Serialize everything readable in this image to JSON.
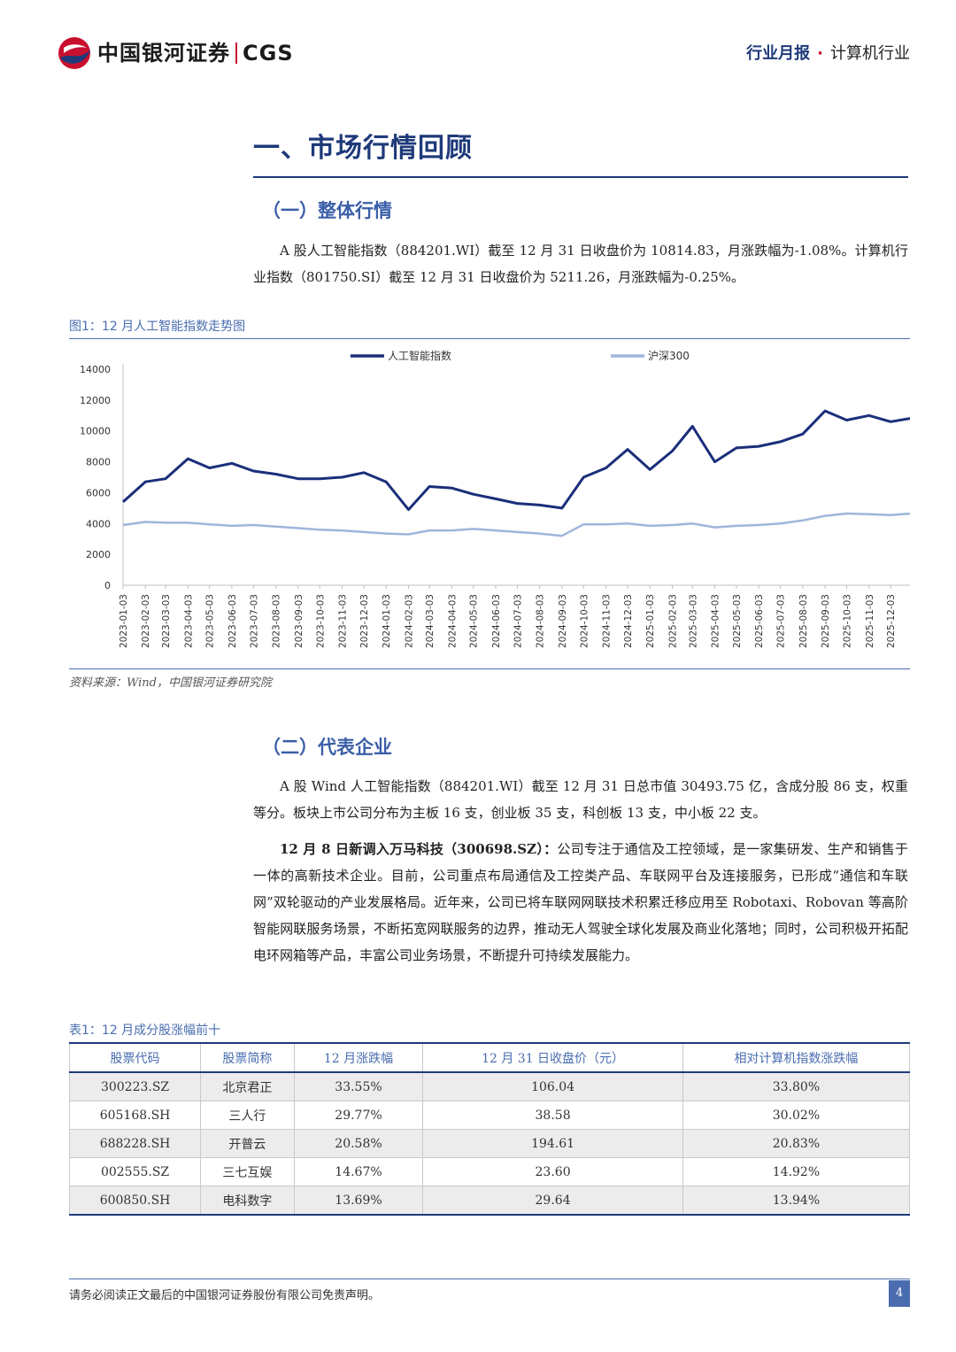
{
  "header": {
    "brand_cn": "中国银河证券",
    "brand_en": "CGS",
    "report_type": "行业月报",
    "dot": "·",
    "industry": "计算机行业"
  },
  "section1": {
    "title": "一、市场行情回顾"
  },
  "sub1": {
    "title": "（一）整体行情"
  },
  "para1": "A 股人工智能指数（884201.WI）截至 12 月 31 日收盘价为 10814.83，月涨跌幅为-1.08%。计算机行业指数（801750.SI）截至 12 月 31 日收盘价为 5211.26，月涨跌幅为-0.25%。",
  "figure1": {
    "caption": "图1：12 月人工智能指数走势图",
    "source": "资料来源：Wind，中国银河证券研究院"
  },
  "chart_data": {
    "type": "line",
    "title": "",
    "xlabel": "",
    "ylabel": "",
    "ylim": [
      0,
      14000
    ],
    "yticks": [
      0,
      2000,
      4000,
      6000,
      8000,
      10000,
      12000,
      14000
    ],
    "x_ticks": [
      "2023-01-03",
      "2023-02-03",
      "2023-03-03",
      "2023-04-03",
      "2023-05-03",
      "2023-06-03",
      "2023-07-03",
      "2023-08-03",
      "2023-09-03",
      "2023-10-03",
      "2023-11-03",
      "2023-12-03",
      "2024-01-03",
      "2024-02-03",
      "2024-03-03",
      "2024-04-03",
      "2024-05-03",
      "2024-06-03",
      "2024-07-03",
      "2024-08-03",
      "2024-09-03",
      "2024-10-03",
      "2024-11-03",
      "2024-12-03",
      "2025-01-03",
      "2025-02-03",
      "2025-03-03",
      "2025-04-03",
      "2025-05-03",
      "2025-06-03",
      "2025-07-03",
      "2025-08-03",
      "2025-09-03",
      "2025-10-03",
      "2025-11-03",
      "2025-12-03"
    ],
    "legend_position": "top-center",
    "grid": false,
    "series": [
      {
        "name": "人工智能指数",
        "color": "#1a2f7a",
        "x": [
          "2023-01-03",
          "2023-02-03",
          "2023-03-03",
          "2023-04-03",
          "2023-05-03",
          "2023-06-03",
          "2023-07-03",
          "2023-08-03",
          "2023-09-03",
          "2023-10-03",
          "2023-11-03",
          "2023-12-03",
          "2024-01-03",
          "2024-02-03",
          "2024-03-03",
          "2024-04-03",
          "2024-05-03",
          "2024-06-03",
          "2024-07-03",
          "2024-08-03",
          "2024-09-03",
          "2024-10-03",
          "2024-11-03",
          "2024-12-03",
          "2025-01-03",
          "2025-02-03",
          "2025-03-03",
          "2025-04-03",
          "2025-05-03",
          "2025-06-03",
          "2025-07-03",
          "2025-08-03",
          "2025-09-03",
          "2025-10-03",
          "2025-11-03",
          "2025-12-03",
          "2025-12-31"
        ],
        "values": [
          5400,
          6700,
          6900,
          8200,
          7600,
          7900,
          7400,
          7200,
          6900,
          6900,
          7000,
          7300,
          6700,
          4900,
          6400,
          6300,
          5900,
          5600,
          5300,
          5200,
          5000,
          7000,
          7600,
          8800,
          7500,
          8700,
          10300,
          8000,
          8900,
          9000,
          9300,
          9800,
          11300,
          10700,
          11000,
          10600,
          10815
        ]
      },
      {
        "name": "沪深300",
        "color": "#9eb6dc",
        "x": [
          "2023-01-03",
          "2023-02-03",
          "2023-03-03",
          "2023-04-03",
          "2023-05-03",
          "2023-06-03",
          "2023-07-03",
          "2023-08-03",
          "2023-09-03",
          "2023-10-03",
          "2023-11-03",
          "2023-12-03",
          "2024-01-03",
          "2024-02-03",
          "2024-03-03",
          "2024-04-03",
          "2024-05-03",
          "2024-06-03",
          "2024-07-03",
          "2024-08-03",
          "2024-09-03",
          "2024-10-03",
          "2024-11-03",
          "2024-12-03",
          "2025-01-03",
          "2025-02-03",
          "2025-03-03",
          "2025-04-03",
          "2025-05-03",
          "2025-06-03",
          "2025-07-03",
          "2025-08-03",
          "2025-09-03",
          "2025-10-03",
          "2025-11-03",
          "2025-12-03",
          "2025-12-31"
        ],
        "values": [
          3900,
          4100,
          4050,
          4050,
          3950,
          3850,
          3900,
          3800,
          3700,
          3600,
          3550,
          3450,
          3350,
          3300,
          3550,
          3550,
          3650,
          3550,
          3450,
          3350,
          3200,
          3950,
          3950,
          4000,
          3850,
          3900,
          4000,
          3750,
          3850,
          3900,
          4000,
          4200,
          4500,
          4650,
          4600,
          4550,
          4650
        ]
      }
    ]
  },
  "sub2": {
    "title": "（二）代表企业"
  },
  "para2": "A 股 Wind 人工智能指数（884201.WI）截至 12 月 31 日总市值 30493.75 亿，含成分股 86 支，权重等分。板块上市公司分布为主板 16 支，创业板 35 支，科创板 13 支，中小板 22 支。",
  "para3": {
    "bold": "12 月 8 日新调入万马科技（300698.SZ）：",
    "text": "公司专注于通信及工控领域，是一家集研发、生产和销售于一体的高新技术企业。目前，公司重点布局通信及工控类产品、车联网平台及连接服务，已形成“通信和车联网”双轮驱动的产业发展格局。近年来，公司已将车联网网联技术积累迁移应用至 Robotaxi、Robovan 等高阶智能网联服务场景，不断拓宽网联服务的边界，推动无人驾驶全球化发展及商业化落地；同时，公司积极开拓配电环网箱等产品，丰富公司业务场景，不断提升可持续发展能力。"
  },
  "table1": {
    "caption": "表1：12 月成分股涨幅前十",
    "headers": [
      "股票代码",
      "股票简称",
      "12 月涨跌幅",
      "12 月 31 日收盘价（元）",
      "相对计算机指数涨跌幅"
    ],
    "rows": [
      [
        "300223.SZ",
        "北京君正",
        "33.55%",
        "106.04",
        "33.80%"
      ],
      [
        "605168.SH",
        "三人行",
        "29.77%",
        "38.58",
        "30.02%"
      ],
      [
        "688228.SH",
        "开普云",
        "20.58%",
        "194.61",
        "20.83%"
      ],
      [
        "002555.SZ",
        "三七互娱",
        "14.67%",
        "23.60",
        "14.92%"
      ],
      [
        "600850.SH",
        "电科数字",
        "13.69%",
        "29.64",
        "13.94%"
      ]
    ]
  },
  "footer": {
    "disclaimer": "请务必阅读正文最后的中国银河证券股份有限公司免责声明。",
    "page": "4"
  }
}
